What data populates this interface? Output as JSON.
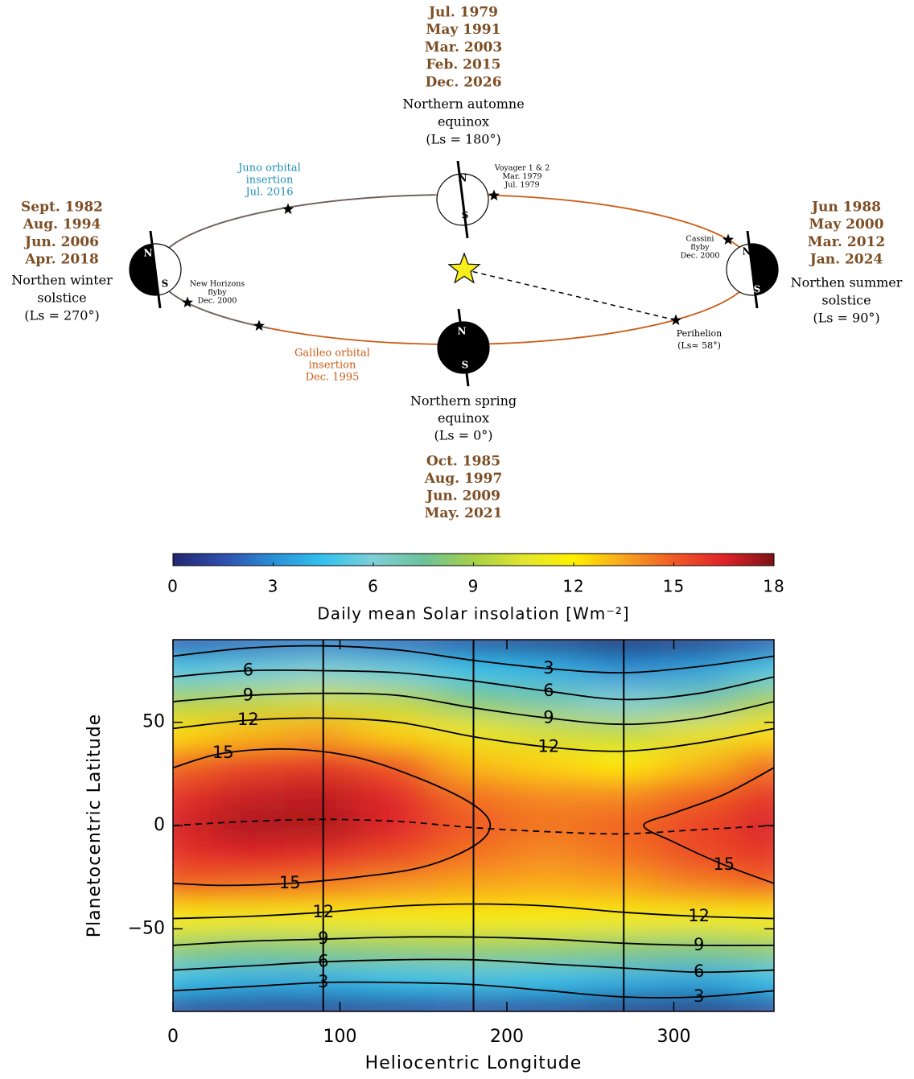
{
  "diagram": {
    "top": {
      "dates": [
        "Jul. 1979",
        "May 1991",
        "Mar. 2003",
        "Feb. 2015",
        "Dec. 2026"
      ],
      "label": [
        "Northern automne",
        "equinox",
        "(Ls = 180°)"
      ]
    },
    "left": {
      "dates": [
        "Sept. 1982",
        "Aug. 1994",
        "Jun. 2006",
        "Apr. 2018"
      ],
      "label": [
        "Northen winter",
        "solstice",
        "(Ls = 270°)"
      ]
    },
    "right": {
      "dates": [
        "Jun 1988",
        "May 2000",
        "Mar. 2012",
        "Jan. 2024"
      ],
      "label": [
        "Northen summer",
        "solstice",
        "(Ls = 90°)"
      ]
    },
    "bottom": {
      "label": [
        "Northern spring",
        "equinox",
        "(Ls = 0°)"
      ],
      "dates": [
        "Oct. 1985",
        "Aug. 1997",
        "Jun. 2009",
        "May. 2021"
      ]
    },
    "missions": {
      "juno": [
        "Juno orbital",
        "insertion",
        "Jul. 2016"
      ],
      "voyager": [
        "Voyager 1 & 2",
        "Mar. 1979",
        "Jul. 1979"
      ],
      "cassini": [
        "Cassini",
        "flyby",
        "Dec. 2000"
      ],
      "new_horizons": [
        "New Horizons",
        "flyby",
        "Dec. 2000"
      ],
      "galileo": [
        "Galileo orbital",
        "insertion",
        "Dec. 1995"
      ],
      "perihelion": [
        "Perihelion",
        "(Ls≈ 58°)"
      ]
    },
    "poles": {
      "north": "N",
      "south": "S"
    }
  },
  "chart_data": {
    "type": "heatmap",
    "x_label": "Heliocentric Longitude",
    "y_label": "Planetocentric Latitude",
    "xlim": [
      0,
      360
    ],
    "xticks": [
      0,
      100,
      200,
      300
    ],
    "ylim": [
      -90,
      90
    ],
    "yticks": [
      {
        "value": -50,
        "label": "−50"
      },
      0,
      50
    ],
    "colorbar": {
      "label": "Daily mean Solar insolation [Wm⁻²]",
      "zlim": [
        0,
        18
      ],
      "zticks": [
        0,
        3,
        6,
        9,
        12,
        15,
        18
      ]
    },
    "colorscale": [
      "#24266f",
      "#2f4fae",
      "#2a8fd6",
      "#33c3ef",
      "#7fcfd8",
      "#6cc29a",
      "#a6d047",
      "#e3e52e",
      "#fff100",
      "#f8a51f",
      "#f05a25",
      "#e0232a",
      "#7c1416"
    ],
    "heatmap": {
      "x": [
        0,
        45,
        90,
        135,
        180,
        225,
        270,
        315,
        360
      ],
      "y": [
        90,
        75,
        60,
        45,
        30,
        15,
        0,
        -15,
        -30,
        -45,
        -60,
        -75,
        -90
      ],
      "z": [
        [
          1.5,
          2,
          2.5,
          2,
          1,
          0.5,
          0,
          0.5,
          1.5
        ],
        [
          5,
          5.5,
          6,
          5.5,
          4.5,
          4,
          3,
          3.5,
          5
        ],
        [
          9,
          9.5,
          10,
          9.5,
          8,
          7,
          6,
          7,
          9
        ],
        [
          12.3,
          13,
          13.5,
          12.5,
          11,
          10,
          9.5,
          10.5,
          12.3
        ],
        [
          14.6,
          15.5,
          15.8,
          15,
          13,
          12.5,
          12,
          13,
          14.6
        ],
        [
          16,
          16.8,
          17,
          16.3,
          14.5,
          14,
          14,
          14.8,
          16
        ],
        [
          16.6,
          17.3,
          17.3,
          16.5,
          15,
          14.5,
          14.8,
          15.6,
          16.6
        ],
        [
          16,
          16.5,
          16.2,
          15.5,
          14.5,
          14,
          14.5,
          15.4,
          16
        ],
        [
          14.8,
          14.6,
          14.3,
          13.8,
          13.5,
          13.3,
          13.5,
          14.2,
          14.8
        ],
        [
          11.8,
          11.5,
          11.6,
          11.7,
          11.8,
          11.8,
          11.6,
          11.5,
          11.8
        ],
        [
          8.5,
          8,
          8.2,
          8.5,
          8.6,
          8.5,
          8.2,
          8,
          8.5
        ],
        [
          4.5,
          4,
          4,
          4.5,
          4.8,
          4.5,
          4,
          3.7,
          4.5
        ],
        [
          1,
          0.8,
          0.8,
          1,
          1.2,
          1,
          0.5,
          0.3,
          1
        ]
      ]
    },
    "contours": [
      {
        "level": 3,
        "x": [
          0,
          45,
          90,
          135,
          180,
          225,
          270,
          315,
          360
        ],
        "y": [
          82,
          86,
          87,
          85,
          80,
          76,
          74,
          77,
          82
        ]
      },
      {
        "level": 6,
        "x": [
          0,
          45,
          90,
          135,
          180,
          225,
          270,
          315,
          360
        ],
        "y": [
          72,
          75,
          75,
          74,
          70,
          65,
          61,
          64,
          72
        ]
      },
      {
        "level": 9,
        "x": [
          0,
          45,
          90,
          135,
          180,
          225,
          270,
          315,
          360
        ],
        "y": [
          60,
          63,
          64,
          63,
          57,
          52,
          49,
          52,
          60
        ]
      },
      {
        "level": 12,
        "x": [
          0,
          45,
          90,
          135,
          180,
          225,
          270,
          315,
          360
        ],
        "y": [
          47,
          51,
          52,
          50,
          43,
          38,
          36,
          40,
          47
        ]
      },
      {
        "level": 15,
        "x": [
          0,
          30,
          70,
          110,
          150,
          180,
          190,
          180,
          150,
          110,
          70,
          30,
          0
        ],
        "y": [
          28,
          35,
          37,
          33,
          22,
          10,
          0,
          -10,
          -20,
          -25,
          -28,
          -29,
          -28
        ]
      },
      {
        "level": 15,
        "x": [
          360,
          330,
          300,
          282,
          300,
          330,
          360
        ],
        "y": [
          28,
          15,
          6,
          0,
          -8,
          -19,
          -28
        ]
      },
      {
        "level": 12,
        "x": [
          0,
          45,
          90,
          135,
          180,
          225,
          270,
          315,
          360
        ],
        "y": [
          -45,
          -44,
          -42,
          -39,
          -38,
          -39,
          -42,
          -44,
          -45
        ]
      },
      {
        "level": 9,
        "x": [
          0,
          45,
          90,
          135,
          180,
          225,
          270,
          315,
          360
        ],
        "y": [
          -58,
          -56,
          -55,
          -54,
          -54,
          -55,
          -57,
          -58,
          -58
        ]
      },
      {
        "level": 6,
        "x": [
          0,
          45,
          90,
          135,
          180,
          225,
          270,
          315,
          360
        ],
        "y": [
          -70,
          -68,
          -66,
          -65,
          -65,
          -67,
          -69,
          -71,
          -70
        ]
      },
      {
        "level": 3,
        "x": [
          0,
          45,
          90,
          135,
          180,
          225,
          270,
          315,
          360
        ],
        "y": [
          -80,
          -78,
          -76,
          -76,
          -77,
          -80,
          -83,
          -83,
          -80
        ]
      }
    ],
    "subsolar": {
      "x": [
        0,
        45,
        90,
        135,
        180,
        225,
        270,
        315,
        360
      ],
      "y": [
        0,
        2,
        3,
        2,
        -1,
        -3,
        -4,
        -2,
        0
      ]
    },
    "vlines": [
      90,
      180,
      270
    ]
  }
}
